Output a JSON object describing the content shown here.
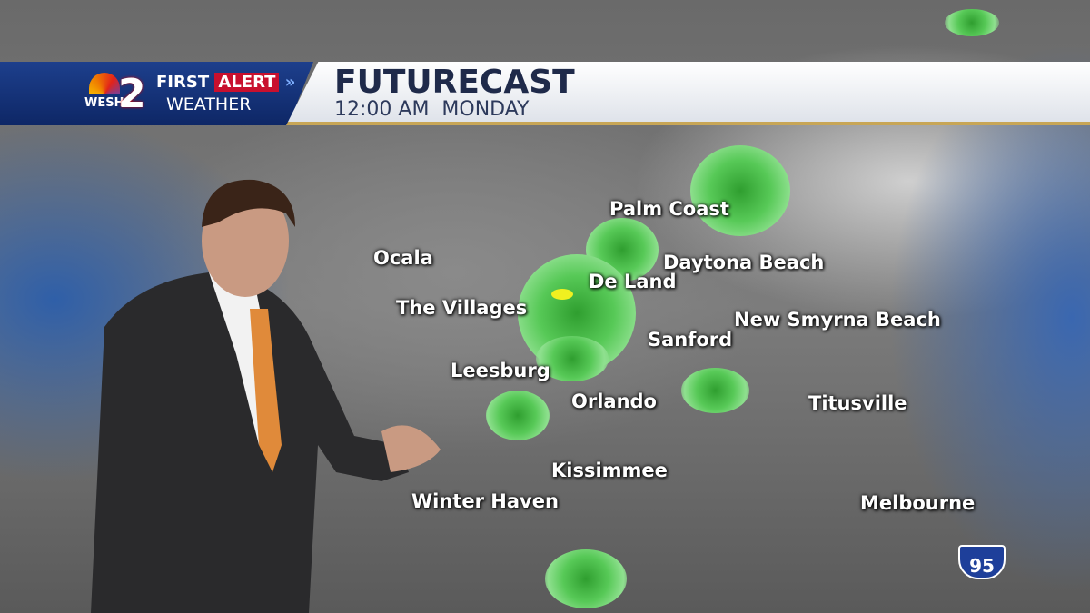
{
  "banner": {
    "station": "WESH",
    "channel": "2",
    "first": "FIRST",
    "alert": "ALERT",
    "weather": "WEATHER",
    "title": "FUTURECAST",
    "time": "12:00 AM  MONDAY"
  },
  "cities": [
    "Palm Coast",
    "Ocala",
    "Daytona Beach",
    "De Land",
    "The Villages",
    "New Smyrna Beach",
    "Sanford",
    "Leesburg",
    "Orlando",
    "Titusville",
    "Kissimmee",
    "Winter Haven",
    "Melbourne"
  ],
  "highway_shield": "95",
  "colors": {
    "banner_blue": "#1d3f8c",
    "alert_red": "#c8102e",
    "radar_green": "#57c957",
    "title_navy": "#1f2a4a"
  }
}
